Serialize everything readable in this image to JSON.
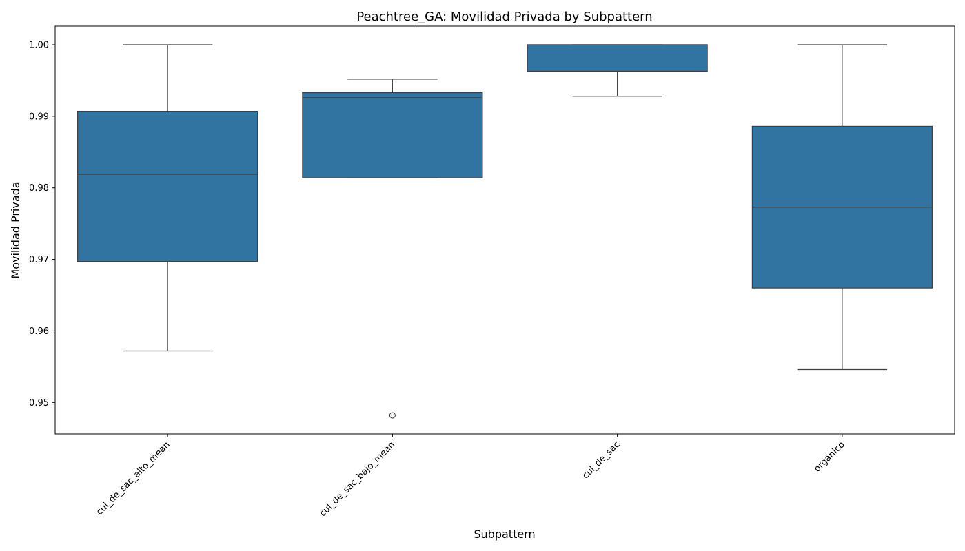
{
  "chart_data": {
    "type": "boxplot",
    "title": "Peachtree_GA: Movilidad Privada by Subpattern",
    "xlabel": "Subpattern",
    "ylabel": "Movilidad Privada",
    "ylim": [
      0.9456,
      1.0026
    ],
    "yticks": [
      0.95,
      0.96,
      0.97,
      0.98,
      0.99,
      1.0
    ],
    "ytick_labels": [
      "0.95",
      "0.96",
      "0.97",
      "0.98",
      "0.99",
      "1.00"
    ],
    "categories": [
      "cul_de_sac_alto_mean",
      "cul_de_sac_bajo_mean",
      "cul_de_sac",
      "organico"
    ],
    "box_color": "#3274a1",
    "line_color": "#3f3f3f",
    "boxes": [
      {
        "category": "cul_de_sac_alto_mean",
        "whisker_low": 0.9572,
        "q1": 0.9697,
        "median": 0.9819,
        "q3": 0.9907,
        "whisker_high": 1.0,
        "outliers": []
      },
      {
        "category": "cul_de_sac_bajo_mean",
        "whisker_low": 0.9814,
        "q1": 0.9814,
        "median": 0.9926,
        "q3": 0.9933,
        "whisker_high": 0.9952,
        "outliers": [
          0.9482
        ]
      },
      {
        "category": "cul_de_sac",
        "whisker_low": 0.9928,
        "q1": 0.9963,
        "median": 1.0,
        "q3": 1.0,
        "whisker_high": 1.0,
        "outliers": []
      },
      {
        "category": "organico",
        "whisker_low": 0.9546,
        "q1": 0.966,
        "median": 0.9773,
        "q3": 0.9886,
        "whisker_high": 1.0,
        "outliers": []
      }
    ]
  }
}
